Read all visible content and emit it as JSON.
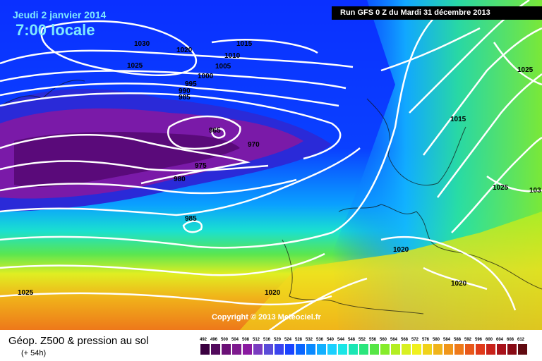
{
  "header": {
    "date": "Jeudi 2 janvier 2014",
    "local_time": "7:00 locale",
    "run_info": "Run GFS 0 Z du Mardi 31 décembre 2013"
  },
  "map": {
    "isobar_labels": [
      "1030",
      "1020",
      "1015",
      "1010",
      "1005",
      "1000",
      "995",
      "990",
      "985",
      "1025",
      "965",
      "970",
      "975",
      "980",
      "985",
      "1015",
      "1025",
      "1025",
      "103",
      "1020",
      "1020",
      "1025",
      "1020"
    ],
    "copyright": "Copyright © 2013 Meteociel.fr"
  },
  "footer": {
    "product_title": "Géop. Z500 & pression au sol",
    "lead_time": "(+ 54h)"
  },
  "scale": {
    "labels": [
      "492",
      "496",
      "500",
      "504",
      "508",
      "512",
      "516",
      "520",
      "524",
      "528",
      "532",
      "536",
      "540",
      "544",
      "548",
      "552",
      "556",
      "560",
      "564",
      "568",
      "572",
      "576",
      "580",
      "584",
      "588",
      "592",
      "596",
      "600",
      "604",
      "608",
      "612"
    ],
    "colors": [
      "#3a0040",
      "#520a5c",
      "#6a1076",
      "#7e1a8e",
      "#8a1aa0",
      "#7a3cc0",
      "#5a4cd8",
      "#3a44ee",
      "#1a44ff",
      "#0a66ff",
      "#0a8aff",
      "#12b0ff",
      "#1ad0ff",
      "#1ae6e6",
      "#1ae6b4",
      "#2ae67c",
      "#56e646",
      "#86ec2a",
      "#b4ee22",
      "#d8f022",
      "#f0f01e",
      "#f0d21a",
      "#f0b41a",
      "#f0961a",
      "#ee7a1a",
      "#e8581a",
      "#e03a1a",
      "#c8221a",
      "#a8121a",
      "#880a14",
      "#600a10"
    ]
  }
}
